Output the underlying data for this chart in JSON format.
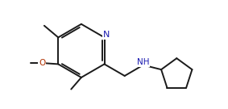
{
  "bg_color": "#ffffff",
  "bond_color": "#1a1a1a",
  "nitrogen_color": "#1a1ab0",
  "oxygen_color": "#b03000",
  "line_width": 1.4,
  "font_size": 7.5,
  "fig_width": 2.83,
  "fig_height": 1.35,
  "dpi": 100,
  "xlim": [
    0,
    10
  ],
  "ylim": [
    0,
    4.77
  ]
}
